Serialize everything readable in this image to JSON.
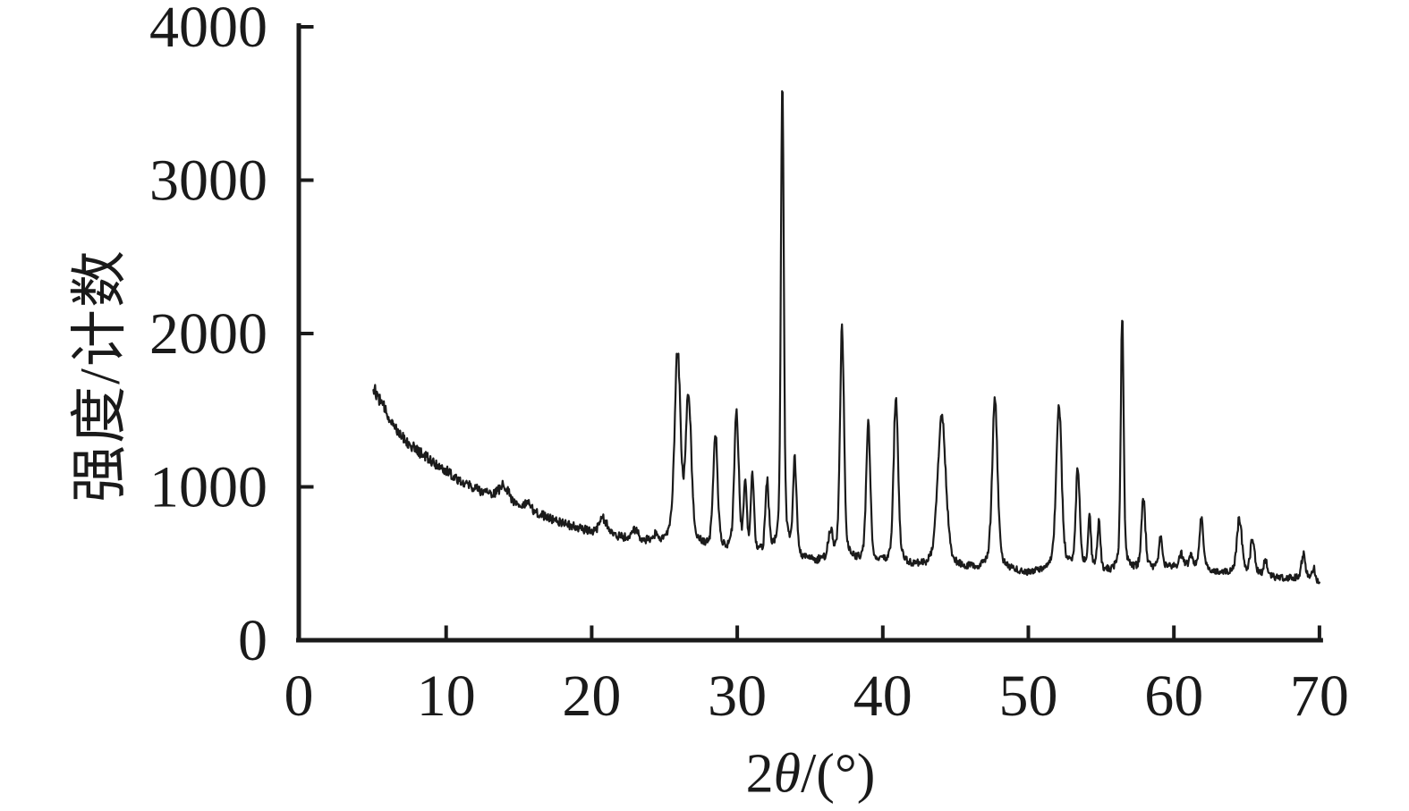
{
  "figure": {
    "kind": "XRD diffraction pattern",
    "background_color": "#ffffff",
    "axis_color": "#1a1a1a"
  },
  "chart_data": {
    "type": "line",
    "title": "",
    "xlabel_parts": {
      "prefix": "2",
      "theta": "θ",
      "suffix": "/(°)"
    },
    "ylabel": "强度/计数",
    "xlim": [
      0,
      70
    ],
    "ylim": [
      0,
      4000
    ],
    "x_ticks": [
      0,
      10,
      20,
      30,
      40,
      50,
      60,
      70
    ],
    "y_ticks": [
      0,
      1000,
      2000,
      3000,
      4000
    ],
    "grid": false,
    "legend": null,
    "line_color": "#1b1b1b",
    "line_width": 2.2,
    "trace": {
      "x_start": 5.0,
      "x_end": 70.0,
      "x_step": 0.04,
      "background_points": [
        [
          5,
          1650
        ],
        [
          5.5,
          1555
        ],
        [
          6,
          1470
        ],
        [
          6.5,
          1395
        ],
        [
          7,
          1330
        ],
        [
          7.5,
          1280
        ],
        [
          8,
          1235
        ],
        [
          9,
          1170
        ],
        [
          10,
          1105
        ],
        [
          11,
          1040
        ],
        [
          12,
          988
        ],
        [
          13,
          950
        ],
        [
          14,
          908
        ],
        [
          15,
          868
        ],
        [
          16,
          838
        ],
        [
          17,
          800
        ],
        [
          18,
          763
        ],
        [
          19,
          733
        ],
        [
          20,
          708
        ],
        [
          21,
          685
        ],
        [
          22,
          672
        ],
        [
          23,
          650
        ],
        [
          24,
          636
        ],
        [
          25,
          618
        ],
        [
          26,
          602
        ],
        [
          27,
          588
        ],
        [
          28,
          576
        ],
        [
          29,
          566
        ],
        [
          30,
          559
        ],
        [
          31,
          553
        ],
        [
          32,
          549
        ],
        [
          33,
          545
        ],
        [
          34,
          540
        ],
        [
          35,
          524
        ],
        [
          36,
          512
        ],
        [
          37,
          505
        ],
        [
          38,
          500
        ],
        [
          39,
          492
        ],
        [
          40,
          487
        ],
        [
          41,
          482
        ],
        [
          42,
          470
        ],
        [
          43,
          464
        ],
        [
          44,
          461
        ],
        [
          45,
          459
        ],
        [
          46,
          456
        ],
        [
          47,
          452
        ],
        [
          48,
          449
        ],
        [
          49,
          446
        ],
        [
          50,
          444
        ],
        [
          51,
          446
        ],
        [
          52,
          450
        ],
        [
          53,
          447
        ],
        [
          54,
          444
        ],
        [
          55,
          442
        ],
        [
          56,
          440
        ],
        [
          57,
          444
        ],
        [
          58,
          450
        ],
        [
          59,
          468
        ],
        [
          60,
          478
        ],
        [
          61,
          478
        ],
        [
          62,
          460
        ],
        [
          63,
          445
        ],
        [
          64,
          438
        ],
        [
          65,
          431
        ],
        [
          66,
          419
        ],
        [
          67,
          407
        ],
        [
          68,
          403
        ],
        [
          69,
          397
        ],
        [
          70,
          376
        ]
      ],
      "peaks": [
        {
          "two_theta": 14.0,
          "intensity": 1010,
          "width": 0.45
        },
        {
          "two_theta": 15.6,
          "intensity": 885,
          "width": 0.25
        },
        {
          "two_theta": 20.8,
          "intensity": 792,
          "width": 0.35
        },
        {
          "two_theta": 23.0,
          "intensity": 718,
          "width": 0.28
        },
        {
          "two_theta": 24.4,
          "intensity": 668,
          "width": 0.2
        },
        {
          "two_theta": 25.9,
          "intensity": 1845,
          "width": 0.26
        },
        {
          "two_theta": 26.65,
          "intensity": 1550,
          "width": 0.26
        },
        {
          "two_theta": 28.5,
          "intensity": 1340,
          "width": 0.2
        },
        {
          "two_theta": 29.95,
          "intensity": 1455,
          "width": 0.2
        },
        {
          "two_theta": 30.55,
          "intensity": 975,
          "width": 0.14
        },
        {
          "two_theta": 31.05,
          "intensity": 1055,
          "width": 0.14
        },
        {
          "two_theta": 32.05,
          "intensity": 1020,
          "width": 0.16
        },
        {
          "two_theta": 33.1,
          "intensity": 3660,
          "width": 0.13
        },
        {
          "two_theta": 33.95,
          "intensity": 1140,
          "width": 0.16
        },
        {
          "two_theta": 36.4,
          "intensity": 690,
          "width": 0.2
        },
        {
          "two_theta": 37.2,
          "intensity": 2025,
          "width": 0.18
        },
        {
          "two_theta": 39.0,
          "intensity": 1435,
          "width": 0.18
        },
        {
          "two_theta": 40.9,
          "intensity": 1600,
          "width": 0.2
        },
        {
          "two_theta": 44.05,
          "intensity": 1445,
          "width": 0.38
        },
        {
          "two_theta": 47.7,
          "intensity": 1575,
          "width": 0.24
        },
        {
          "two_theta": 52.1,
          "intensity": 1550,
          "width": 0.24
        },
        {
          "two_theta": 53.4,
          "intensity": 1105,
          "width": 0.18
        },
        {
          "two_theta": 54.2,
          "intensity": 768,
          "width": 0.14
        },
        {
          "two_theta": 54.85,
          "intensity": 768,
          "width": 0.14
        },
        {
          "two_theta": 56.45,
          "intensity": 2110,
          "width": 0.13
        },
        {
          "two_theta": 57.9,
          "intensity": 925,
          "width": 0.18
        },
        {
          "two_theta": 59.1,
          "intensity": 665,
          "width": 0.16
        },
        {
          "two_theta": 60.5,
          "intensity": 560,
          "width": 0.18
        },
        {
          "two_theta": 61.2,
          "intensity": 550,
          "width": 0.15
        },
        {
          "two_theta": 61.9,
          "intensity": 795,
          "width": 0.17
        },
        {
          "two_theta": 64.5,
          "intensity": 795,
          "width": 0.22
        },
        {
          "two_theta": 65.4,
          "intensity": 658,
          "width": 0.18
        },
        {
          "two_theta": 66.3,
          "intensity": 520,
          "width": 0.15
        },
        {
          "two_theta": 68.9,
          "intensity": 560,
          "width": 0.18
        },
        {
          "two_theta": 69.6,
          "intensity": 470,
          "width": 0.12
        }
      ],
      "noise": {
        "seed": 12,
        "scale": 1.05
      },
      "lorentz_fraction": 0.22
    }
  }
}
